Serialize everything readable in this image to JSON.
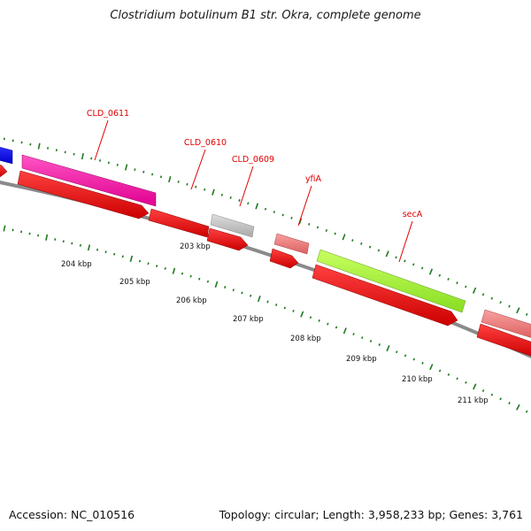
{
  "title": "Clostridium botulinum B1 str. Okra, complete genome",
  "footer": {
    "accession": "Accession: NC_010516",
    "stats": "Topology: circular; Length: 3,958,233 bp; Genes: 3,761"
  },
  "scale": {
    "labels": [
      "203 kbp",
      "204 kbp",
      "205 kbp",
      "206 kbp",
      "207 kbp",
      "208 kbp",
      "209 kbp",
      "210 kbp",
      "211 kbp"
    ]
  },
  "gene_labels": [
    "CLD_0611",
    "CLD_0610",
    "CLD_0609",
    "yfiA",
    "secA"
  ],
  "colors": {
    "backbone": "#8a8a8a",
    "tick": "#1f7a1f",
    "cds_red": "#ee0000",
    "pink": "#ff22aa",
    "blue": "#0000ee",
    "gray_gene": "#c8c8c8",
    "salmon": "#ee8080",
    "lime": "#aaff33",
    "label_red": "#dd0000"
  }
}
